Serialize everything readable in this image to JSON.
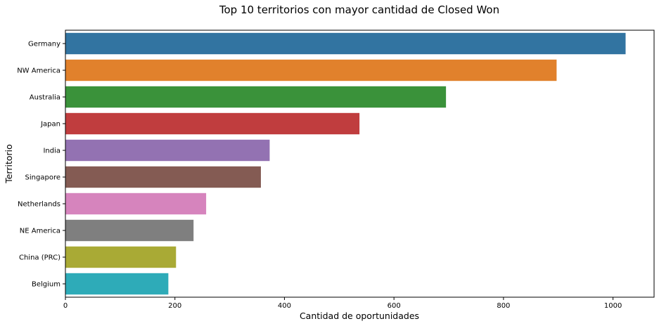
{
  "chart_data": {
    "type": "bar",
    "orientation": "horizontal",
    "title": "Top 10 territorios con mayor cantidad de Closed Won",
    "xlabel": "Cantidad de oportunidades",
    "ylabel": "Territorio",
    "xlim": [
      0,
      1075
    ],
    "xticks": [
      0,
      200,
      400,
      600,
      800,
      1000
    ],
    "grid": false,
    "categories": [
      "Germany",
      "NW America",
      "Australia",
      "Japan",
      "India",
      "Singapore",
      "Netherlands",
      "NE America",
      "China (PRC)",
      "Belgium"
    ],
    "values": [
      1023,
      897,
      695,
      537,
      373,
      357,
      257,
      234,
      202,
      188
    ],
    "colors": [
      "#3274a1",
      "#e1812c",
      "#3a923a",
      "#c03d3e",
      "#9372b2",
      "#845b53",
      "#d684bd",
      "#7f7f7f",
      "#a9aa35",
      "#2eabb8"
    ]
  }
}
